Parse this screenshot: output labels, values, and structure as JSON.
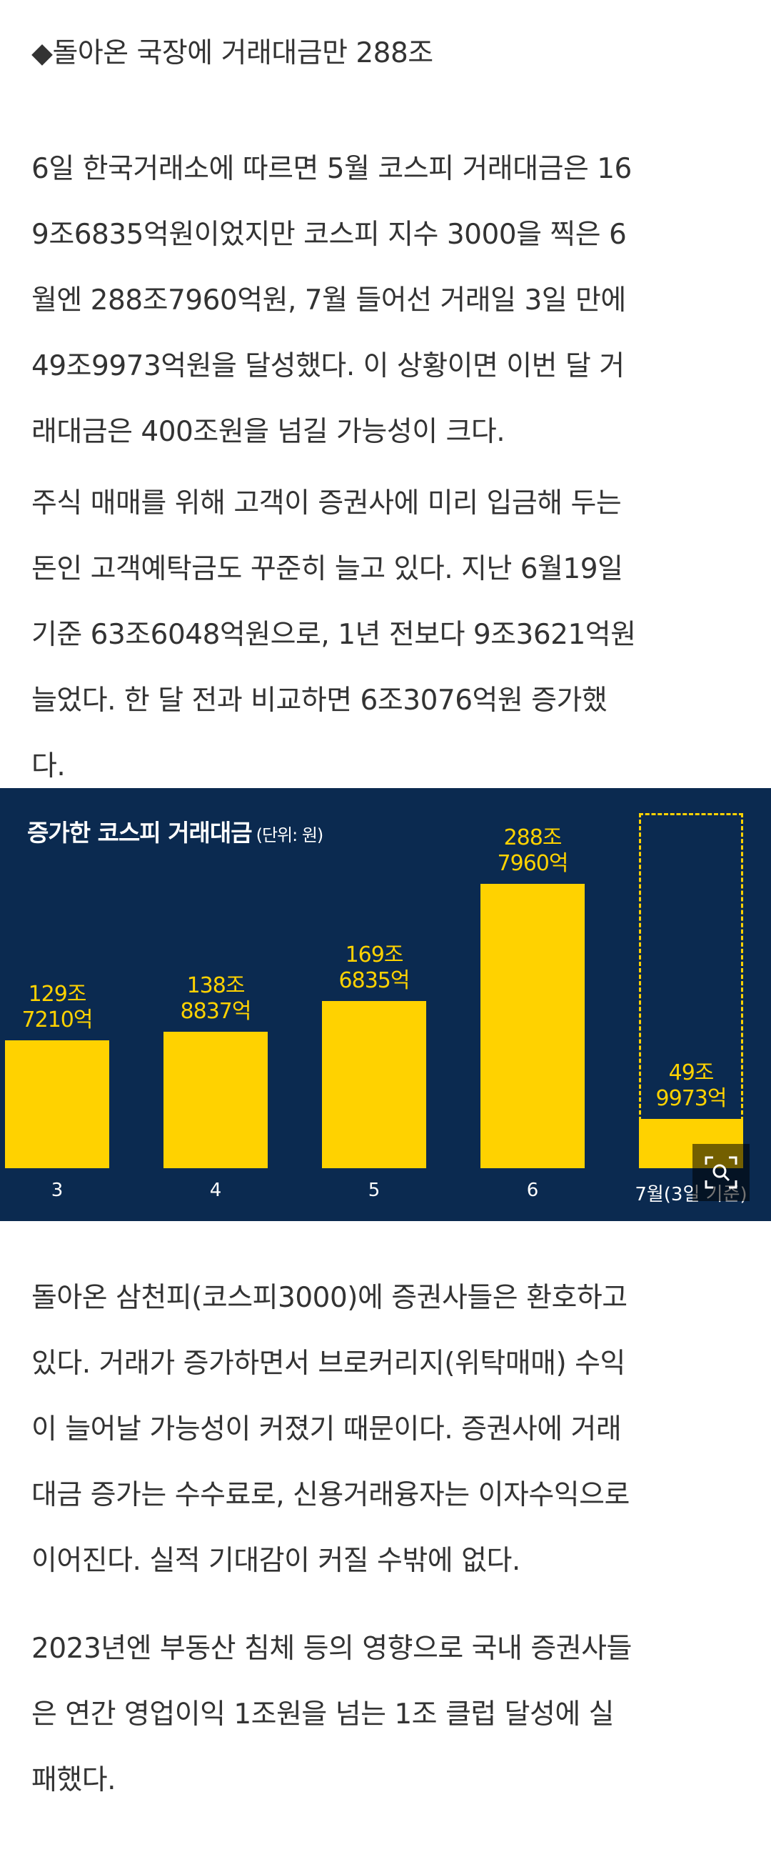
{
  "heading": "◆돌아온 국장에 거래대금만 288조",
  "paragraphs": [
    [
      "6일 한국거래소에 따르면 5월 코스피 거래대금은 16",
      "9조6835억원이었지만 코스피 지수 3000을 찍은 6",
      "월엔 288조7960억원, 7월 들어선 거래일 3일 만에",
      "49조9973억원을 달성했다. 이 상황이면 이번 달 거",
      "래대금은 400조원을 넘길 가능성이 크다."
    ],
    [
      "주식 매매를 위해 고객이 증권사에 미리 입금해 두는",
      "돈인 고객예탁금도 꾸준히 늘고 있다. 지난 6월19일",
      "기준 63조6048억원으로, 1년 전보다 9조3621억원",
      "늘었다. 한 달 전과 비교하면 6조3076억원 증가했",
      "다."
    ],
    [
      "돌아온 삼천피(코스피3000)에 증권사들은 환호하고",
      "있다. 거래가 증가하면서 브로커리지(위탁매매) 수익",
      "이 늘어날 가능성이 커졌기 때문이다. 증권사에 거래",
      "대금 증가는 수수료로, 신용거래융자는 이자수익으로",
      "이어진다. 실적 기대감이 커질 수밖에 없다."
    ],
    [
      "2023년엔 부동산 침체 등의 영향으로 국내 증권사들",
      "은 연간 영업이익 1조원을 넘는 1조 클럽 달성에 실",
      "패했다."
    ]
  ],
  "chart_data": {
    "type": "bar",
    "title": "증가한 코스피 거래대금",
    "unit": "(단위: 원)",
    "categories": [
      "3",
      "4",
      "5",
      "6",
      "7월(3일 기준)"
    ],
    "values": [
      129.721,
      138.8837,
      169.6835,
      288.796,
      49.9973
    ],
    "value_unit": "조원",
    "labels": [
      [
        "129조",
        "7210억"
      ],
      [
        "138조",
        "8837억"
      ],
      [
        "169조",
        "6835억"
      ],
      [
        "288조",
        "7960억"
      ],
      [
        "49조",
        "9973억"
      ]
    ],
    "ylim": [
      0,
      361
    ],
    "colors": {
      "bar": "#ffd200",
      "background": "#0b2a50",
      "title": "#ffffff"
    }
  }
}
